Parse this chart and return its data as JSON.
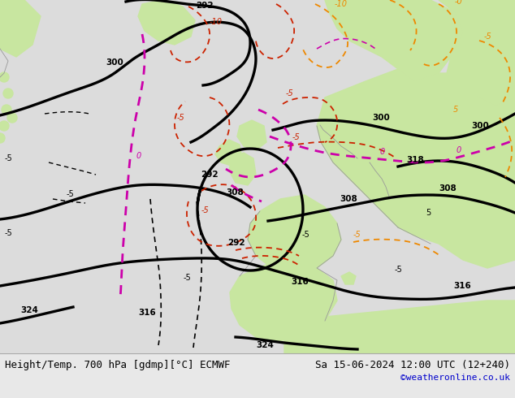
{
  "title_left": "Height/Temp. 700 hPa [gdmp][°C] ECMWF",
  "title_right": "Sa 15-06-2024 12:00 UTC (12+240)",
  "credit": "©weatheronline.co.uk",
  "bg_color": "#f0f0f0",
  "land_green": "#c8e6a0",
  "land_dark_green": "#b0d880",
  "sea_color": "#dcdcdc",
  "bottom_bar_color": "#e8e8e8",
  "title_fontsize": 9.0,
  "credit_fontsize": 8,
  "credit_color": "#0000cc",
  "title_color": "#000000",
  "bk": "#000000",
  "rd": "#cc2200",
  "og": "#ee8800",
  "mg": "#cc00aa",
  "gr": "#999999",
  "figsize": [
    6.34,
    4.9
  ],
  "dpi": 100
}
